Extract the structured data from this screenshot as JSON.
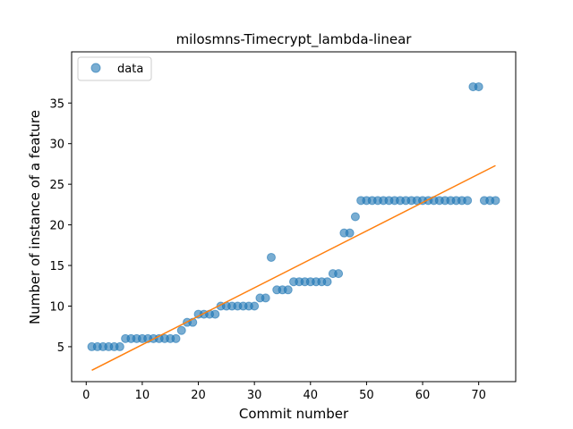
{
  "chart_data": {
    "type": "scatter",
    "title": "milosmns-Timecrypt_lambda-linear",
    "xlabel": "Commit number",
    "ylabel": "Number of instance of a feature",
    "xlim": [
      -2.6,
      76.6
    ],
    "ylim": [
      0.7,
      41.3
    ],
    "xticks": [
      0,
      10,
      20,
      30,
      40,
      50,
      60,
      70
    ],
    "yticks": [
      5,
      10,
      15,
      20,
      25,
      30,
      35
    ],
    "grid": false,
    "legend": {
      "placement": "top-left",
      "entries": [
        "data"
      ]
    },
    "colors": {
      "data": "#1f77b4",
      "fit": "#ff7f0e"
    },
    "series": [
      {
        "name": "data",
        "kind": "scatter",
        "x": [
          1,
          2,
          3,
          4,
          5,
          6,
          7,
          8,
          9,
          10,
          11,
          12,
          13,
          14,
          15,
          16,
          17,
          18,
          19,
          20,
          21,
          22,
          23,
          24,
          25,
          26,
          27,
          28,
          29,
          30,
          31,
          32,
          33,
          34,
          35,
          36,
          37,
          38,
          39,
          40,
          41,
          42,
          43,
          44,
          45,
          46,
          47,
          48,
          49,
          50,
          51,
          52,
          53,
          54,
          55,
          56,
          57,
          58,
          59,
          60,
          61,
          62,
          63,
          64,
          65,
          66,
          67,
          68,
          69,
          70,
          71,
          72,
          73
        ],
        "y": [
          5,
          5,
          5,
          5,
          5,
          5,
          6,
          6,
          6,
          6,
          6,
          6,
          6,
          6,
          6,
          6,
          7,
          8,
          8,
          9,
          9,
          9,
          9,
          10,
          10,
          10,
          10,
          10,
          10,
          10,
          11,
          11,
          16,
          12,
          12,
          12,
          13,
          13,
          13,
          13,
          13,
          13,
          13,
          14,
          14,
          19,
          19,
          21,
          23,
          23,
          23,
          23,
          23,
          23,
          23,
          23,
          23,
          23,
          23,
          23,
          23,
          23,
          23,
          23,
          23,
          23,
          23,
          23,
          37,
          37,
          23,
          23,
          23
        ]
      },
      {
        "kind": "line",
        "x": [
          1,
          73
        ],
        "y": [
          2.1,
          27.3
        ]
      }
    ]
  }
}
